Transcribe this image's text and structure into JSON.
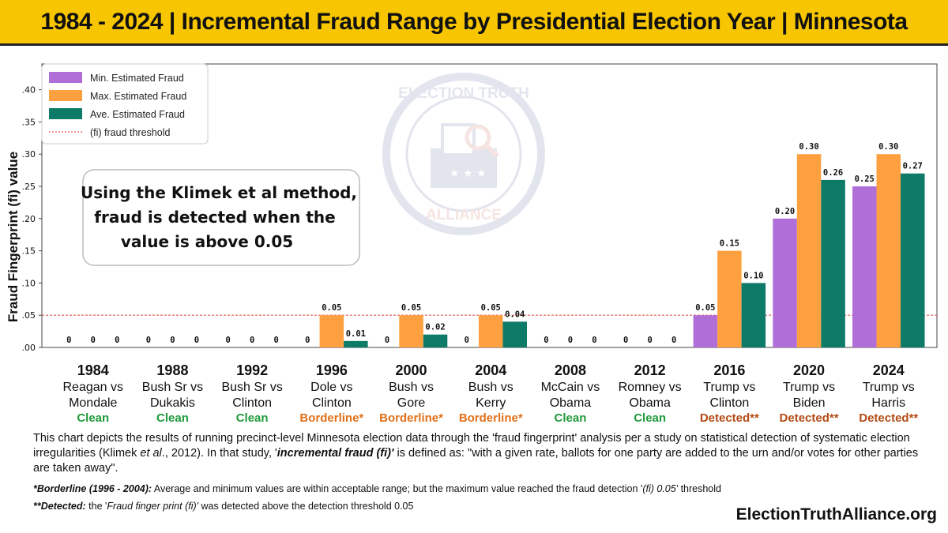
{
  "header": {
    "title": "1984 - 2024 | Incremental Fraud Range by Presidential Election Year | Minnesota"
  },
  "callout": {
    "lines": [
      "Using the Klimek et al method,",
      "fraud is detected when the",
      "value is above 0.05"
    ]
  },
  "watermark": {
    "top_text": "ELECTION TRUTH",
    "bottom_text": "ALLIANCE",
    "icon": "ballot-box-magnifier-icon"
  },
  "chart_data": {
    "type": "bar",
    "title": "1984 - 2024 | Incremental Fraud Range by Presidential Election Year | Minnesota",
    "ylabel": "Fraud Fingerprint (fi) value",
    "xlabel": "",
    "ylim": [
      0,
      0.44
    ],
    "yticks": [
      ".00",
      ".05",
      ".10",
      ".15",
      ".20",
      ".25",
      ".30",
      ".35",
      ".40"
    ],
    "threshold": {
      "value": 0.05,
      "label": "(fi) fraud threshold",
      "color": "#e05a4f"
    },
    "legend_position": "top-left",
    "grid": false,
    "categories": [
      "1984",
      "1988",
      "1992",
      "1996",
      "2000",
      "2004",
      "2008",
      "2012",
      "2016",
      "2020",
      "2024"
    ],
    "matchups": [
      [
        "Reagan vs",
        "Mondale"
      ],
      [
        "Bush Sr vs",
        "Dukakis"
      ],
      [
        "Bush Sr vs",
        "Clinton"
      ],
      [
        "Dole vs",
        "Clinton"
      ],
      [
        "Bush vs",
        "Gore"
      ],
      [
        "Bush vs",
        "Kerry"
      ],
      [
        "McCain vs",
        "Obama"
      ],
      [
        "Romney vs",
        "Obama"
      ],
      [
        "Trump vs",
        "Clinton"
      ],
      [
        "Trump vs",
        "Biden"
      ],
      [
        "Trump vs",
        "Harris"
      ]
    ],
    "status": [
      "Clean",
      "Clean",
      "Clean",
      "Borderline*",
      "Borderline*",
      "Borderline*",
      "Clean",
      "Clean",
      "Detected**",
      "Detected**",
      "Detected**"
    ],
    "status_colors": {
      "Clean": "#1f9a3a",
      "Borderline*": "#e0701a",
      "Detected**": "#b34a14"
    },
    "series": [
      {
        "name": "Min. Estimated Fraud",
        "color": "#b06fd8",
        "values": [
          0,
          0,
          0,
          0,
          0,
          0,
          0,
          0,
          0.05,
          0.2,
          0.25
        ],
        "labels": [
          "0",
          "0",
          "0",
          "0",
          "0",
          "0",
          "0",
          "0",
          "0.05",
          "0.20",
          "0.25"
        ]
      },
      {
        "name": "Max. Estimated Fraud",
        "color": "#ffa040",
        "values": [
          0,
          0,
          0,
          0.05,
          0.05,
          0.05,
          0,
          0,
          0.15,
          0.3,
          0.3
        ],
        "labels": [
          "0",
          "0",
          "0",
          "0.05",
          "0.05",
          "0.05",
          "0",
          "0",
          "0.15",
          "0.30",
          "0.30"
        ]
      },
      {
        "name": "Ave. Estimated Fraud",
        "color": "#0e7a68",
        "values": [
          0,
          0,
          0,
          0.01,
          0.02,
          0.04,
          0,
          0,
          0.1,
          0.26,
          0.27
        ],
        "labels": [
          "0",
          "0",
          "0",
          "0.01",
          "0.02",
          "0.04",
          "0",
          "0",
          "0.10",
          "0.26",
          "0.27"
        ]
      }
    ]
  },
  "footer": {
    "caption_1": "This chart depicts the results of running precinct-level Minnesota election data through the 'fraud fingerprint' analysis per a study on statistical detection of systematic election irregularities (Klimek ",
    "caption_et_al": "et al",
    "caption_2": "., 2012). In that study, '",
    "caption_def": "incremental fraud (fi)'",
    "caption_3": " is defined as: \"with a given rate, ballots for one party are added to the urn and/or votes for other parties are taken away\".",
    "borderline_label": "*Borderline (1996 - 2004):",
    "borderline_text_1": " Average and minimum values are within acceptable range; but the maximum value reached the fraud detection '",
    "borderline_em": "(fi) 0.05'",
    "borderline_text_2": " threshold",
    "detected_label": "**Detected:",
    "detected_text_1": " the '",
    "detected_em": "Fraud finger print (fi)'",
    "detected_text_2": " was detected above the detection threshold 0.05",
    "site": "ElectionTruthAlliance.org"
  }
}
